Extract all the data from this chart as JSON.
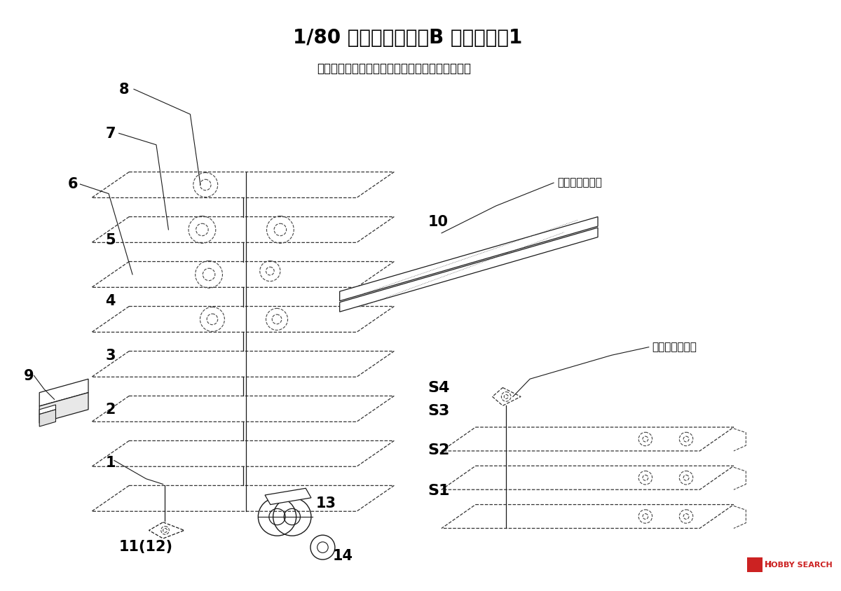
{
  "title": "1/80 凸型電気機関軍B 組み立て方1",
  "subtitle": "使用するパワトラによって穴を広げてください。",
  "note1": "ナットを入れる",
  "note2": "ナットを入れる",
  "background_color": "#ffffff",
  "title_fontsize": 20,
  "subtitle_fontsize": 12,
  "label_fontsize": 15,
  "s_label_fontsize": 16,
  "note_fontsize": 11,
  "line_color": "#1a1a1a",
  "hobby_search_color": "#cc2222"
}
